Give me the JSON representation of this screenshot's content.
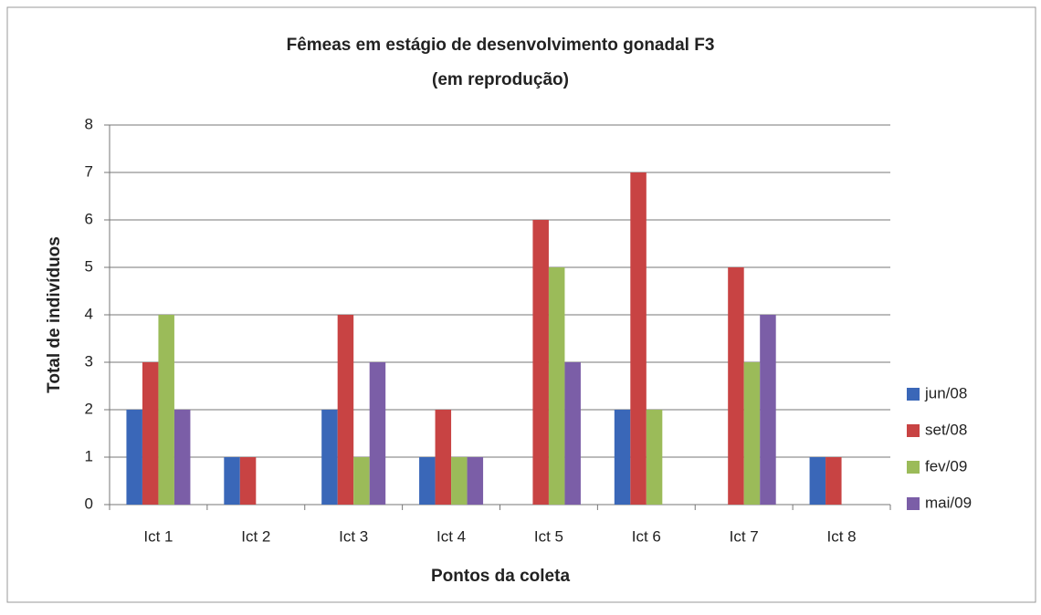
{
  "chart_data": {
    "type": "bar",
    "title": [
      "Fêmeas em estágio de desenvolvimento gonadal F3",
      "(em reprodução)"
    ],
    "x_label": "Pontos da coleta",
    "y_label": "Total de indivíduos",
    "categories": [
      "Ict 1",
      "Ict 2",
      "Ict 3",
      "Ict 4",
      "Ict 5",
      "Ict 6",
      "Ict 7",
      "Ict 8"
    ],
    "series": [
      {
        "name": "jun/08",
        "color": "#3a67b8",
        "values": [
          2,
          1,
          2,
          1,
          0,
          2,
          0,
          1
        ]
      },
      {
        "name": "set/08",
        "color": "#c84343",
        "values": [
          3,
          1,
          4,
          2,
          6,
          7,
          5,
          1
        ]
      },
      {
        "name": "fev/09",
        "color": "#9bbb59",
        "values": [
          4,
          0,
          1,
          1,
          5,
          2,
          3,
          0
        ]
      },
      {
        "name": "mai/09",
        "color": "#7b5ea7",
        "values": [
          2,
          0,
          3,
          1,
          3,
          0,
          4,
          0
        ]
      }
    ],
    "ylim": [
      0,
      8
    ],
    "yticks": [
      0,
      1,
      2,
      3,
      4,
      5,
      6,
      7,
      8
    ],
    "grid": true,
    "legend": "right"
  }
}
